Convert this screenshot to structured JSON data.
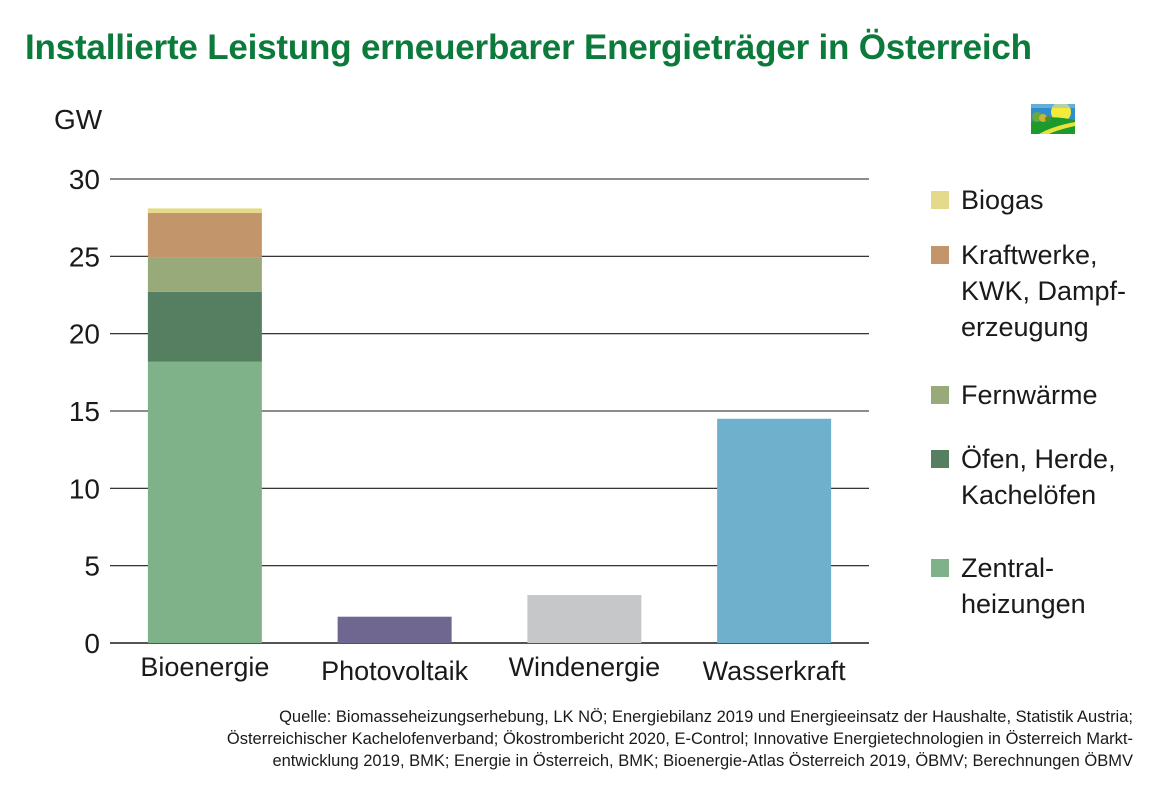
{
  "chart_data": {
    "type": "bar",
    "stacked": true,
    "title": "Installierte Leistung erneuerbarer Energieträger in Österreich",
    "ylabel": "GW",
    "xlabel": "",
    "ylim": [
      0,
      30
    ],
    "yticks": [
      0,
      5,
      10,
      15,
      20,
      25,
      30
    ],
    "grid": true,
    "legend_position": "right",
    "categories": [
      "Bioenergie",
      "Photovoltaik",
      "Windenergie",
      "Wasserkraft"
    ],
    "series": [
      {
        "name": "Zentralheizungen",
        "legend_label": "Zentral-\nheizungen",
        "color": "#80b289",
        "values": [
          18.2,
          null,
          null,
          null
        ]
      },
      {
        "name": "Öfen, Herde, Kachelöfen",
        "legend_label": "Öfen, Herde,\nKachelöfen",
        "color": "#567e61",
        "values": [
          4.5,
          null,
          null,
          null
        ]
      },
      {
        "name": "Fernwärme",
        "legend_label": "Fernwärme",
        "color": "#98a97a",
        "values": [
          2.2,
          null,
          null,
          null
        ]
      },
      {
        "name": "Kraftwerke, KWK, Dampferzeugung",
        "legend_label": "Kraftwerke,\nKWK, Dampf-\nerzeugung",
        "color": "#c2956b",
        "values": [
          2.9,
          null,
          null,
          null
        ]
      },
      {
        "name": "Biogas",
        "legend_label": "Biogas",
        "color": "#e5d98b",
        "values": [
          0.3,
          null,
          null,
          null
        ]
      },
      {
        "name": "Photovoltaik",
        "color": "#6f6790",
        "values": [
          null,
          1.7,
          null,
          null
        ]
      },
      {
        "name": "Windenergie",
        "color": "#c6c7c9",
        "values": [
          null,
          null,
          3.1,
          null
        ]
      },
      {
        "name": "Wasserkraft",
        "color": "#6fb0cd",
        "values": [
          null,
          null,
          null,
          14.5
        ]
      }
    ],
    "totals": [
      28.1,
      1.7,
      3.1,
      14.5
    ],
    "legend": [
      "Biogas",
      "Kraftwerke, KWK, Dampferzeugung",
      "Fernwärme",
      "Öfen, Herde, Kachelöfen",
      "Zentralheizungen"
    ]
  },
  "header": {
    "title": "Installierte Leistung erneuerbarer Energieträger in Österreich",
    "unit_label": "GW",
    "logo_icon": "landscape-logo-icon"
  },
  "colors": {
    "title": "#0b7a3b",
    "grid": "#1a1a1a"
  },
  "source_note": "Quelle: Biomasseheizungserhebung, LK NÖ; Energiebilanz 2019 und Energieeinsatz der Haushalte, Statistik Austria;\nÖsterreichischer Kachelofenverband; Ökostrombericht 2020, E-Control; Innovative Energietechnologien in Österreich Markt-\nentwicklung 2019, BMK; Energie in Österreich, BMK; Bioenergie-Atlas Österreich 2019, ÖBMV; Berechnungen ÖBMV"
}
